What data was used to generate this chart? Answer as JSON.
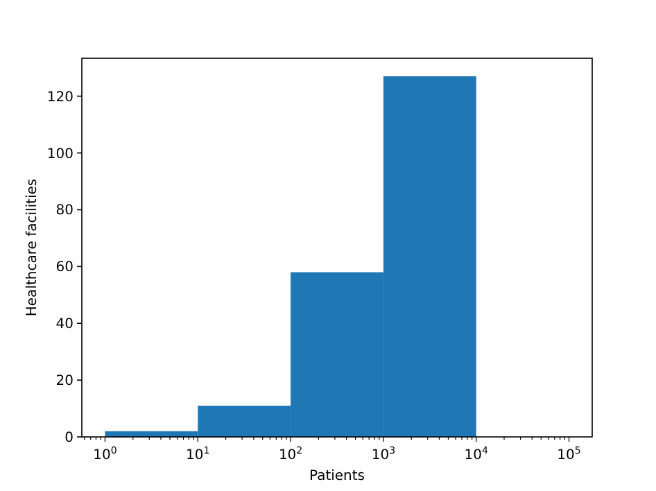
{
  "chart_data": {
    "type": "histogram",
    "xlabel": "Patients",
    "ylabel": "Healthcare facilities",
    "log": "x",
    "color": "#1f77b4",
    "bins": [
      1,
      10,
      100,
      1000,
      10000,
      100000
    ],
    "values": [
      2,
      11,
      58,
      127,
      0
    ],
    "xlim": [
      0.5623,
      177828
    ],
    "ylim": [
      0,
      133.35
    ],
    "xticks": [
      {
        "value": 0.6,
        "label": null
      },
      {
        "value": 0.7,
        "label": null
      },
      {
        "value": 0.8,
        "label": null
      },
      {
        "value": 0.9,
        "label": null
      },
      {
        "value": 1,
        "label": "10$^{0}$"
      },
      {
        "value": 2,
        "label": null
      },
      {
        "value": 3,
        "label": null
      },
      {
        "value": 4,
        "label": null
      },
      {
        "value": 5,
        "label": null
      },
      {
        "value": 6,
        "label": null
      },
      {
        "value": 7,
        "label": null
      },
      {
        "value": 8,
        "label": null
      },
      {
        "value": 9,
        "label": null
      },
      {
        "value": 10,
        "label": "10$^{1}$"
      },
      {
        "value": 20,
        "label": null
      },
      {
        "value": 30,
        "label": null
      },
      {
        "value": 40,
        "label": null
      },
      {
        "value": 50,
        "label": null
      },
      {
        "value": 60,
        "label": null
      },
      {
        "value": 70,
        "label": null
      },
      {
        "value": 80,
        "label": null
      },
      {
        "value": 90,
        "label": null
      },
      {
        "value": 100,
        "label": "10$^{2}$"
      },
      {
        "value": 200,
        "label": null
      },
      {
        "value": 300,
        "label": null
      },
      {
        "value": 400,
        "label": null
      },
      {
        "value": 500,
        "label": null
      },
      {
        "value": 600,
        "label": null
      },
      {
        "value": 700,
        "label": null
      },
      {
        "value": 800,
        "label": null
      },
      {
        "value": 900,
        "label": null
      },
      {
        "value": 1000,
        "label": "10$^{3}$"
      },
      {
        "value": 2000,
        "label": null
      },
      {
        "value": 3000,
        "label": null
      },
      {
        "value": 4000,
        "label": null
      },
      {
        "value": 5000,
        "label": null
      },
      {
        "value": 6000,
        "label": null
      },
      {
        "value": 7000,
        "label": null
      },
      {
        "value": 8000,
        "label": null
      },
      {
        "value": 9000,
        "label": null
      },
      {
        "value": 10000,
        "label": "10$^{4}$"
      },
      {
        "value": 20000,
        "label": null
      },
      {
        "value": 30000,
        "label": null
      },
      {
        "value": 40000,
        "label": null
      },
      {
        "value": 50000,
        "label": null
      },
      {
        "value": 60000,
        "label": null
      },
      {
        "value": 70000,
        "label": null
      },
      {
        "value": 80000,
        "label": null
      },
      {
        "value": 90000,
        "label": null
      },
      {
        "value": 100000,
        "label": "10$^{5}$"
      }
    ],
    "yticks": [
      0,
      20,
      40,
      60,
      80,
      100,
      120
    ],
    "grid": false
  }
}
